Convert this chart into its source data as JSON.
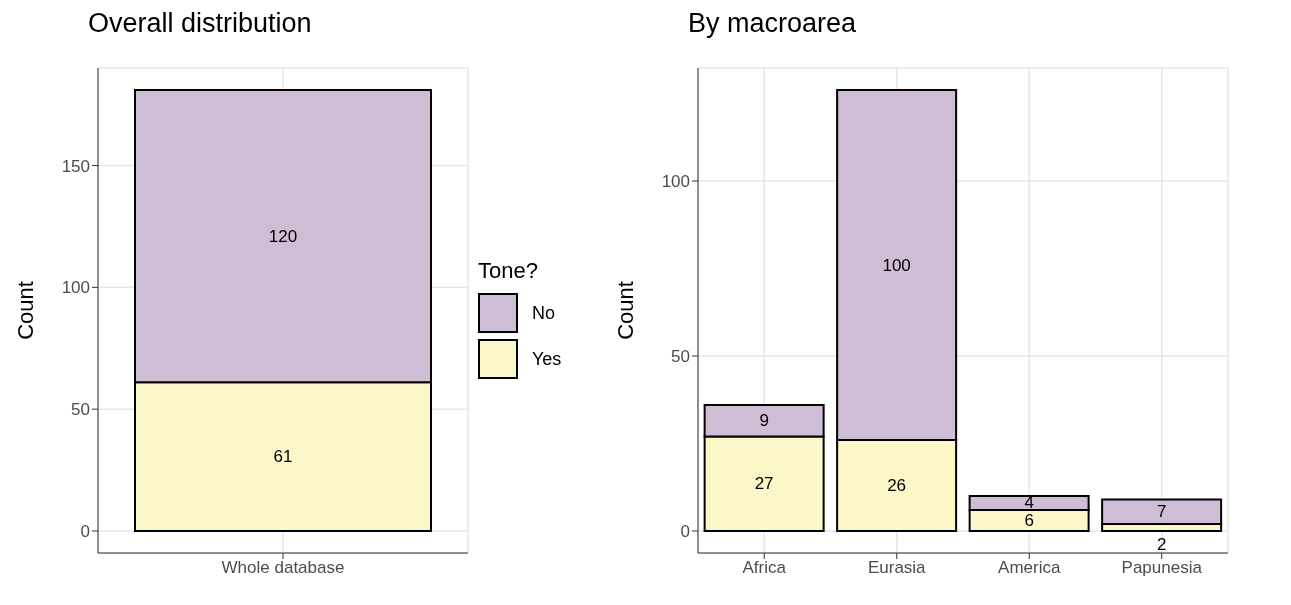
{
  "chart_data": [
    {
      "type": "bar",
      "title": "Overall distribution",
      "ylabel": "Count",
      "categories": [
        "Whole database"
      ],
      "stacked": true,
      "data_labels": true,
      "grid": true,
      "legend": "right",
      "legend_title": "Tone?",
      "ylim": [
        -9.05,
        190.05
      ],
      "yticks": [
        0,
        50,
        100,
        150
      ],
      "series": [
        {
          "name": "Yes",
          "color": "#fbf7c8",
          "values": [
            61
          ]
        },
        {
          "name": "No",
          "color": "#cfbcd5",
          "values": [
            120
          ]
        }
      ]
    },
    {
      "type": "bar",
      "title": "By macroarea",
      "ylabel": "Count",
      "categories": [
        "Africa",
        "Eurasia",
        "America",
        "Papunesia"
      ],
      "stacked": true,
      "data_labels": true,
      "grid": true,
      "ylim": [
        -6.3,
        132.3
      ],
      "yticks": [
        0,
        50,
        100
      ],
      "series": [
        {
          "color": "#fbf7c8",
          "values": [
            27,
            26,
            6,
            2
          ]
        },
        {
          "color": "#cfbcd5",
          "values": [
            9,
            100,
            4,
            7
          ]
        }
      ]
    }
  ]
}
